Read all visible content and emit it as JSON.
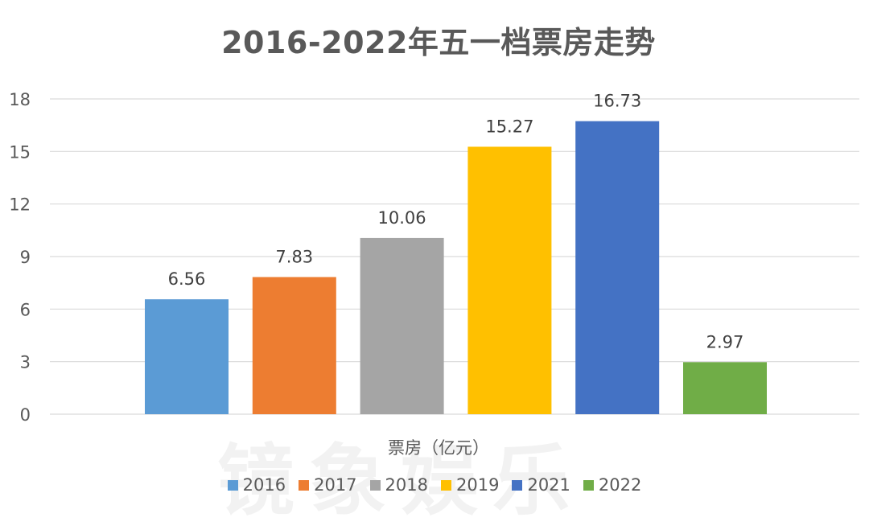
{
  "chart_data": {
    "type": "bar",
    "title": "2016-2022年五一档票房走势",
    "xlabel": "票房（亿元）",
    "ylabel": "",
    "ylim": [
      0,
      18
    ],
    "yticks": [
      0,
      3,
      6,
      9,
      12,
      15,
      18
    ],
    "grid": true,
    "legend_position": "bottom",
    "categories": [
      "2016",
      "2017",
      "2018",
      "2019",
      "2021",
      "2022"
    ],
    "values": [
      6.56,
      7.83,
      10.06,
      15.27,
      16.73,
      2.97
    ],
    "data_labels": [
      "6.56",
      "7.83",
      "10.06",
      "15.27",
      "16.73",
      "2.97"
    ],
    "colors": [
      "#5b9bd5",
      "#ed7d31",
      "#a5a5a5",
      "#ffc000",
      "#4472c4",
      "#70ad47"
    ],
    "watermark": "镜象娱乐"
  }
}
